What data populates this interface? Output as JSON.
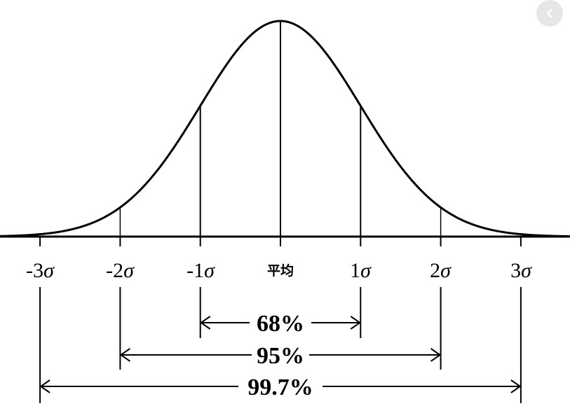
{
  "diagram": {
    "tick_labels": [
      {
        "num": "-3",
        "sym": "σ"
      },
      {
        "num": "-2",
        "sym": "σ"
      },
      {
        "num": "-1",
        "sym": "σ"
      },
      {
        "num": "平均",
        "sym": ""
      },
      {
        "num": "1",
        "sym": "σ"
      },
      {
        "num": "2",
        "sym": "σ"
      },
      {
        "num": "3",
        "sym": "σ"
      }
    ],
    "intervals": [
      {
        "label": "68%",
        "from": -1,
        "to": 1
      },
      {
        "label": "95%",
        "from": -2,
        "to": 2
      },
      {
        "label": "99.7%",
        "from": -3,
        "to": 3
      }
    ]
  },
  "ui": {
    "back_icon": "chevron-left-icon"
  }
}
